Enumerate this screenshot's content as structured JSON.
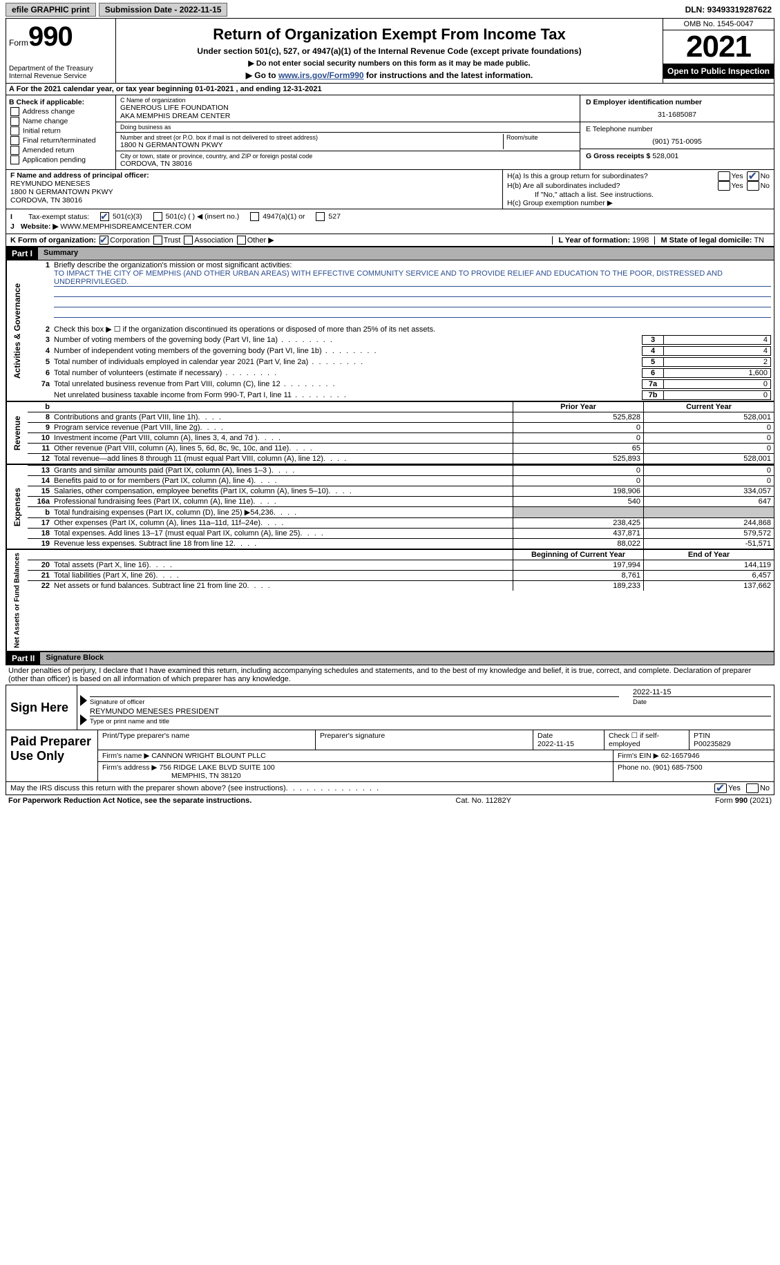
{
  "topbar": {
    "efile": "efile GRAPHIC print",
    "submission_label": "Submission Date - 2022-11-15",
    "dln": "DLN: 93493319287622"
  },
  "header": {
    "form_prefix": "Form",
    "form_number": "990",
    "title": "Return of Organization Exempt From Income Tax",
    "subtitle": "Under section 501(c), 527, or 4947(a)(1) of the Internal Revenue Code (except private foundations)",
    "note1": "▶ Do not enter social security numbers on this form as it may be made public.",
    "note2_pre": "▶ Go to ",
    "note2_link": "www.irs.gov/Form990",
    "note2_post": " for instructions and the latest information.",
    "dept1": "Department of the Treasury",
    "dept2": "Internal Revenue Service",
    "omb": "OMB No. 1545-0047",
    "year": "2021",
    "open_pub": "Open to Public Inspection"
  },
  "line_a": "For the 2021 calendar year, or tax year beginning 01-01-2021    , and ending 12-31-2021",
  "box_b": {
    "header": "B Check if applicable:",
    "opts": [
      "Address change",
      "Name change",
      "Initial return",
      "Final return/terminated",
      "Amended return",
      "Application pending"
    ]
  },
  "box_c": {
    "name_label": "C Name of organization",
    "name1": "GENEROUS LIFE FOUNDATION",
    "name2": "AKA MEMPHIS DREAM CENTER",
    "dba_label": "Doing business as",
    "addr_label": "Number and street (or P.O. box if mail is not delivered to street address)",
    "room_label": "Room/suite",
    "addr": "1800 N GERMANTOWN PKWY",
    "city_label": "City or town, state or province, country, and ZIP or foreign postal code",
    "city": "CORDOVA, TN  38016"
  },
  "box_d": {
    "ein_label": "D Employer identification number",
    "ein": "31-1685087",
    "phone_label": "E Telephone number",
    "phone": "(901) 751-0095",
    "gross_label": "G Gross receipts $",
    "gross": "528,001"
  },
  "box_f": {
    "label": "F Name and address of principal officer:",
    "name": "REYMUNDO MENESES",
    "addr1": "1800 N GERMANTOWN PKWY",
    "addr2": "CORDOVA, TN  38016"
  },
  "box_h": {
    "ha": "H(a)  Is this a group return for subordinates?",
    "hb": "H(b)  Are all subordinates included?",
    "hb_note": "If \"No,\" attach a list. See instructions.",
    "hc": "H(c)  Group exemption number ▶"
  },
  "line_i": {
    "label": "Tax-exempt status:",
    "o1": "501(c)(3)",
    "o2": "501(c) (  ) ◀ (insert no.)",
    "o3": "4947(a)(1) or",
    "o4": "527"
  },
  "line_j": {
    "pre": "Website: ▶",
    "val": "WWW.MEMPHISDREAMCENTER.COM"
  },
  "line_k": {
    "label": "K Form of organization:",
    "o1": "Corporation",
    "o2": "Trust",
    "o3": "Association",
    "o4": "Other ▶",
    "l_label": "L Year of formation:",
    "l_val": "1998",
    "m_label": "M State of legal domicile:",
    "m_val": "TN"
  },
  "part1": {
    "header": "Part I",
    "title": "Summary",
    "l1_label": "Briefly describe the organization's mission or most significant activities:",
    "l1_text": "TO IMPACT THE CITY OF MEMPHIS (AND OTHER URBAN AREAS) WITH EFFECTIVE COMMUNITY SERVICE AND TO PROVIDE RELIEF AND EDUCATION TO THE POOR, DISTRESSED AND UNDERPRIVILEGED.",
    "l2": "Check this box ▶ ☐ if the organization discontinued its operations or disposed of more than 25% of its net assets.",
    "lines_single": [
      {
        "n": "3",
        "d": "Number of voting members of the governing body (Part VI, line 1a)",
        "box": "3",
        "v": "4"
      },
      {
        "n": "4",
        "d": "Number of independent voting members of the governing body (Part VI, line 1b)",
        "box": "4",
        "v": "4"
      },
      {
        "n": "5",
        "d": "Total number of individuals employed in calendar year 2021 (Part V, line 2a)",
        "box": "5",
        "v": "2"
      },
      {
        "n": "6",
        "d": "Total number of volunteers (estimate if necessary)",
        "box": "6",
        "v": "1,600"
      },
      {
        "n": "7a",
        "d": "Total unrelated business revenue from Part VIII, column (C), line 12",
        "box": "7a",
        "v": "0"
      },
      {
        "n": "",
        "d": "Net unrelated business taxable income from Form 990-T, Part I, line 11",
        "box": "7b",
        "v": "0"
      }
    ],
    "hdr_prior": "Prior Year",
    "hdr_curr": "Current Year",
    "revenue": [
      {
        "n": "8",
        "d": "Contributions and grants (Part VIII, line 1h)",
        "p": "525,828",
        "c": "528,001"
      },
      {
        "n": "9",
        "d": "Program service revenue (Part VIII, line 2g)",
        "p": "0",
        "c": "0"
      },
      {
        "n": "10",
        "d": "Investment income (Part VIII, column (A), lines 3, 4, and 7d )",
        "p": "0",
        "c": "0"
      },
      {
        "n": "11",
        "d": "Other revenue (Part VIII, column (A), lines 5, 6d, 8c, 9c, 10c, and 11e)",
        "p": "65",
        "c": "0"
      },
      {
        "n": "12",
        "d": "Total revenue—add lines 8 through 11 (must equal Part VIII, column (A), line 12)",
        "p": "525,893",
        "c": "528,001"
      }
    ],
    "expenses": [
      {
        "n": "13",
        "d": "Grants and similar amounts paid (Part IX, column (A), lines 1–3 )",
        "p": "0",
        "c": "0"
      },
      {
        "n": "14",
        "d": "Benefits paid to or for members (Part IX, column (A), line 4)",
        "p": "0",
        "c": "0"
      },
      {
        "n": "15",
        "d": "Salaries, other compensation, employee benefits (Part IX, column (A), lines 5–10)",
        "p": "198,906",
        "c": "334,057"
      },
      {
        "n": "16a",
        "d": "Professional fundraising fees (Part IX, column (A), line 11e)",
        "p": "540",
        "c": "647"
      },
      {
        "n": "b",
        "d": "Total fundraising expenses (Part IX, column (D), line 25) ▶54,236",
        "p": "",
        "c": "",
        "shaded": true
      },
      {
        "n": "17",
        "d": "Other expenses (Part IX, column (A), lines 11a–11d, 11f–24e)",
        "p": "238,425",
        "c": "244,868"
      },
      {
        "n": "18",
        "d": "Total expenses. Add lines 13–17 (must equal Part IX, column (A), line 25)",
        "p": "437,871",
        "c": "579,572"
      },
      {
        "n": "19",
        "d": "Revenue less expenses. Subtract line 18 from line 12",
        "p": "88,022",
        "c": "-51,571"
      }
    ],
    "hdr_begin": "Beginning of Current Year",
    "hdr_end": "End of Year",
    "netassets": [
      {
        "n": "20",
        "d": "Total assets (Part X, line 16)",
        "p": "197,994",
        "c": "144,119"
      },
      {
        "n": "21",
        "d": "Total liabilities (Part X, line 26)",
        "p": "8,761",
        "c": "6,457"
      },
      {
        "n": "22",
        "d": "Net assets or fund balances. Subtract line 21 from line 20",
        "p": "189,233",
        "c": "137,662"
      }
    ],
    "vert_act": "Activities & Governance",
    "vert_rev": "Revenue",
    "vert_exp": "Expenses",
    "vert_net": "Net Assets or Fund Balances"
  },
  "part2": {
    "header": "Part II",
    "title": "Signature Block",
    "decl": "Under penalties of perjury, I declare that I have examined this return, including accompanying schedules and statements, and to the best of my knowledge and belief, it is true, correct, and complete. Declaration of preparer (other than officer) is based on all information of which preparer has any knowledge."
  },
  "sign": {
    "label": "Sign Here",
    "sig_cap": "Signature of officer",
    "date": "2022-11-15",
    "date_cap": "Date",
    "name": "REYMUNDO MENESES PRESIDENT",
    "name_cap": "Type or print name and title"
  },
  "prep": {
    "label": "Paid Preparer Use Only",
    "r1c1": "Print/Type preparer's name",
    "r1c2": "Preparer's signature",
    "r1c3_l": "Date",
    "r1c3_v": "2022-11-15",
    "r1c4": "Check ☐ if self-employed",
    "r1c5_l": "PTIN",
    "r1c5_v": "P00235829",
    "r2c1_l": "Firm's name    ▶",
    "r2c1_v": "CANNON WRIGHT BLOUNT PLLC",
    "r2c2_l": "Firm's EIN ▶",
    "r2c2_v": "62-1657946",
    "r3c1_l": "Firm's address ▶",
    "r3c1_v1": "756 RIDGE LAKE BLVD SUITE 100",
    "r3c1_v2": "MEMPHIS, TN  38120",
    "r3c2_l": "Phone no.",
    "r3c2_v": "(901) 685-7500"
  },
  "discuss": "May the IRS discuss this return with the preparer shown above? (see instructions)",
  "footer": {
    "left": "For Paperwork Reduction Act Notice, see the separate instructions.",
    "mid": "Cat. No. 11282Y",
    "right": "Form 990 (2021)"
  }
}
